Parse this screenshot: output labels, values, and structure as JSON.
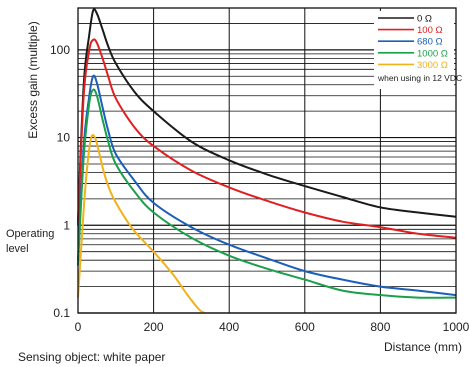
{
  "chart_data": {
    "type": "line",
    "ylabel": "Excess gain (multiple)",
    "xlabel": "Distance (mm)",
    "footnote": "Sensing object: white paper",
    "operating_level_label": [
      "Operating",
      "level"
    ],
    "operating_level_value": 1,
    "xlim": [
      0,
      1000
    ],
    "ylim": [
      0.1,
      300
    ],
    "yscale": "log",
    "x_ticks": [
      0,
      200,
      400,
      600,
      800,
      1000
    ],
    "y_ticks": [
      {
        "value": 0.1,
        "label": "0.1"
      },
      {
        "value": 1,
        "label": "1"
      },
      {
        "value": 10,
        "label": "10"
      },
      {
        "value": 100,
        "label": "100"
      }
    ],
    "grid": true,
    "legend_position": "top-right",
    "legend_note": "when using in 12 VDC",
    "series": [
      {
        "name": "0 Ω",
        "color": "#1a1a1a",
        "x": [
          0,
          15,
          30,
          40,
          50,
          65,
          80,
          100,
          150,
          200,
          300,
          400,
          500,
          600,
          700,
          800,
          900,
          1000
        ],
        "y": [
          1.1,
          40,
          150,
          280,
          260,
          170,
          110,
          70,
          33,
          20,
          9,
          5.5,
          3.8,
          2.8,
          2.1,
          1.6,
          1.4,
          1.25
        ]
      },
      {
        "name": "100 Ω",
        "color": "#e02020",
        "x": [
          0,
          15,
          30,
          40,
          50,
          65,
          80,
          100,
          150,
          200,
          300,
          400,
          500,
          600,
          700,
          800,
          900,
          1000
        ],
        "y": [
          1.0,
          30,
          100,
          130,
          120,
          80,
          50,
          28,
          13,
          8,
          4.2,
          2.7,
          1.9,
          1.4,
          1.1,
          0.95,
          0.8,
          0.72
        ]
      },
      {
        "name": "680 Ω",
        "color": "#1b5fb8",
        "x": [
          0,
          15,
          30,
          40,
          50,
          65,
          80,
          100,
          150,
          200,
          300,
          400,
          500,
          600,
          700,
          800,
          900,
          1000
        ],
        "y": [
          0.4,
          8,
          30,
          50,
          42,
          22,
          12,
          6.5,
          3.2,
          1.8,
          0.95,
          0.6,
          0.42,
          0.3,
          0.24,
          0.2,
          0.18,
          0.16
        ]
      },
      {
        "name": "1000 Ω",
        "color": "#1aa04a",
        "x": [
          0,
          15,
          30,
          40,
          50,
          65,
          80,
          100,
          150,
          200,
          300,
          400,
          500,
          600,
          700,
          800,
          900,
          1000
        ],
        "y": [
          0.35,
          6,
          25,
          35,
          30,
          16,
          9,
          5,
          2.4,
          1.4,
          0.72,
          0.45,
          0.32,
          0.24,
          0.18,
          0.16,
          0.15,
          0.15
        ]
      },
      {
        "name": "3000 Ω",
        "color": "#f2b21a",
        "x": [
          0,
          15,
          25,
          35,
          45,
          55,
          70,
          90,
          120,
          150,
          200,
          250,
          290,
          320,
          335
        ],
        "y": [
          0.15,
          1.5,
          5,
          10,
          10,
          7,
          3.8,
          2.2,
          1.3,
          0.85,
          0.5,
          0.28,
          0.16,
          0.11,
          0.1
        ]
      }
    ]
  }
}
